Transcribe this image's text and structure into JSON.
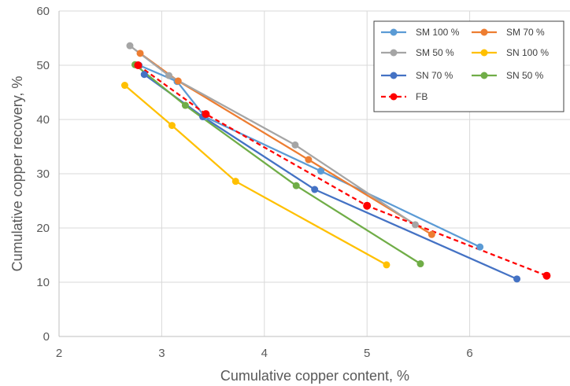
{
  "chart_data": {
    "type": "line",
    "title": "",
    "xlabel": "Cumulative copper content, %",
    "ylabel": "Cumulative copper recovery, %",
    "xlim": [
      2,
      7
    ],
    "ylim": [
      0,
      60
    ],
    "xticks": [
      2,
      3,
      4,
      5,
      6
    ],
    "yticks": [
      0,
      10,
      20,
      30,
      40,
      50,
      60
    ],
    "grid": true,
    "legend_position": "top-right",
    "series": [
      {
        "name": "SM 100 %",
        "color": "#5B9BD5",
        "dash": false,
        "x": [
          2.78,
          3.15,
          3.42,
          4.55,
          6.1
        ],
        "y": [
          50.0,
          47.0,
          40.5,
          30.5,
          16.5
        ]
      },
      {
        "name": "SM 70 %",
        "color": "#ED7D31",
        "dash": false,
        "x": [
          2.79,
          3.16,
          4.43,
          5.63
        ],
        "y": [
          52.2,
          47.1,
          32.6,
          18.8
        ]
      },
      {
        "name": "SM 50 %",
        "color": "#A5A5A5",
        "dash": false,
        "x": [
          2.69,
          3.07,
          4.3,
          5.47
        ],
        "y": [
          53.6,
          48.1,
          35.3,
          20.6
        ]
      },
      {
        "name": "SN 100 %",
        "color": "#FFC000",
        "dash": false,
        "x": [
          2.64,
          3.1,
          3.72,
          5.19
        ],
        "y": [
          46.3,
          38.9,
          28.6,
          13.2
        ]
      },
      {
        "name": "SN 70 %",
        "color": "#4472C4",
        "dash": false,
        "x": [
          2.83,
          3.4,
          4.49,
          6.46
        ],
        "y": [
          48.3,
          40.5,
          27.1,
          10.6
        ]
      },
      {
        "name": "SN 50 %",
        "color": "#70AD47",
        "dash": false,
        "x": [
          2.74,
          3.23,
          4.31,
          5.52
        ],
        "y": [
          50.1,
          42.6,
          27.8,
          13.4
        ]
      },
      {
        "name": "FB",
        "color": "#FF0000",
        "dash": true,
        "x": [
          2.77,
          3.43,
          5.0,
          6.75
        ],
        "y": [
          50.0,
          41.0,
          24.1,
          11.2
        ]
      }
    ]
  }
}
